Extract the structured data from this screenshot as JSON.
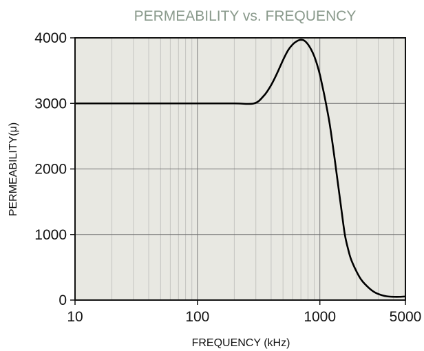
{
  "chart_data": {
    "type": "line",
    "title": "PERMEABILITY vs. FREQUENCY",
    "xlabel": "FREQUENCY (kHz)",
    "ylabel": "PERMEABILITY(μ)",
    "x_scale": "log",
    "xlim": [
      10,
      5000
    ],
    "ylim": [
      0,
      4000
    ],
    "x_ticks": [
      10,
      100,
      1000,
      5000
    ],
    "x_tick_labels": [
      "10",
      "100",
      "1000",
      "5000"
    ],
    "y_ticks": [
      0,
      1000,
      2000,
      3000,
      4000
    ],
    "y_tick_labels": [
      "0",
      "1000",
      "2000",
      "3000",
      "4000"
    ],
    "grid": true,
    "colors": {
      "plot_bg": "#e8e8e2",
      "line": "#000000",
      "title": "#8a9a8c"
    },
    "series": [
      {
        "x": [
          10,
          100,
          200,
          290,
          350,
          400,
          450,
          500,
          550,
          600,
          650,
          700,
          750,
          800,
          850,
          900,
          950,
          1000,
          1050,
          1100,
          1200,
          1300,
          1400,
          1500,
          1600,
          1700,
          1800,
          2000,
          2200,
          2500,
          2800,
          3200,
          3600,
          4000,
          4500,
          5000
        ],
        "y": [
          3000,
          3000,
          3000,
          3000,
          3120,
          3280,
          3470,
          3660,
          3810,
          3900,
          3950,
          3970,
          3955,
          3900,
          3820,
          3720,
          3590,
          3440,
          3260,
          3080,
          2700,
          2250,
          1800,
          1380,
          1000,
          780,
          620,
          430,
          300,
          190,
          120,
          75,
          55,
          50,
          50,
          55
        ]
      }
    ]
  }
}
